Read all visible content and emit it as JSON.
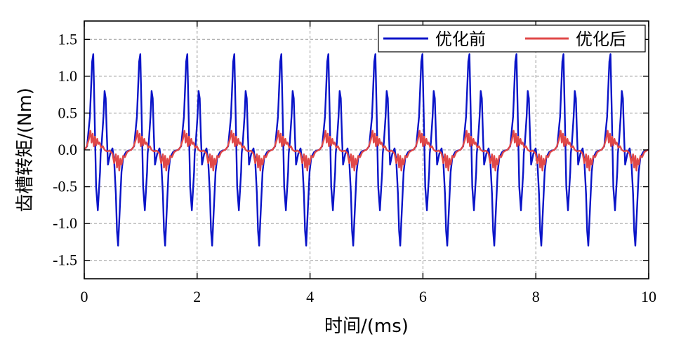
{
  "chart_data": {
    "type": "line",
    "xlabel": "时间/(ms)",
    "ylabel": "齿槽转矩/(Nm)",
    "xlim": [
      0,
      10
    ],
    "ylim": [
      -1.75,
      1.75
    ],
    "xticks": [
      "0",
      "2",
      "4",
      "6",
      "8",
      "10"
    ],
    "yticks": [
      "1.5",
      "1.0",
      "0.5",
      "0.0",
      "-0.5",
      "-1.0",
      "-1.5"
    ],
    "grid": true,
    "legend_position": "top-right",
    "waveform_period_ms": 0.833,
    "series": [
      {
        "name": "优化前",
        "color": "#0a14c8",
        "x": [
          0,
          0.05,
          0.1,
          0.14,
          0.16,
          0.18,
          0.21,
          0.24,
          0.28,
          0.29,
          0.31,
          0.34,
          0.36,
          0.38,
          0.4,
          0.42,
          0.46,
          0.5,
          0.53,
          0.56,
          0.58,
          0.6,
          0.63,
          0.66,
          0.69,
          0.74,
          0.78,
          0.83
        ],
        "values": [
          0,
          0.05,
          0.45,
          1.2,
          1.3,
          0.6,
          -0.5,
          -0.82,
          -0.3,
          -0.05,
          0.1,
          0.45,
          0.8,
          0.7,
          0.2,
          -0.2,
          -0.05,
          0.02,
          -0.15,
          -0.6,
          -1.1,
          -1.3,
          -0.8,
          -0.3,
          -0.1,
          -0.03,
          -0.01,
          0
        ]
      },
      {
        "name": "优化后",
        "color": "#e04848",
        "x": [
          0,
          0.04,
          0.08,
          0.11,
          0.13,
          0.15,
          0.17,
          0.19,
          0.21,
          0.23,
          0.25,
          0.27,
          0.3,
          0.33,
          0.36,
          0.4,
          0.45,
          0.5,
          0.53,
          0.56,
          0.58,
          0.6,
          0.62,
          0.64,
          0.66,
          0.69,
          0.72,
          0.76,
          0.8,
          0.83
        ],
        "values": [
          0,
          0.04,
          0.14,
          0.26,
          0.1,
          0.22,
          0.05,
          0.18,
          0.06,
          0.15,
          0.08,
          0.1,
          0.03,
          0.05,
          0.0,
          -0.02,
          -0.01,
          -0.05,
          -0.18,
          -0.06,
          -0.24,
          -0.08,
          -0.28,
          -0.12,
          -0.2,
          -0.08,
          -0.1,
          -0.03,
          -0.01,
          0
        ]
      }
    ]
  }
}
